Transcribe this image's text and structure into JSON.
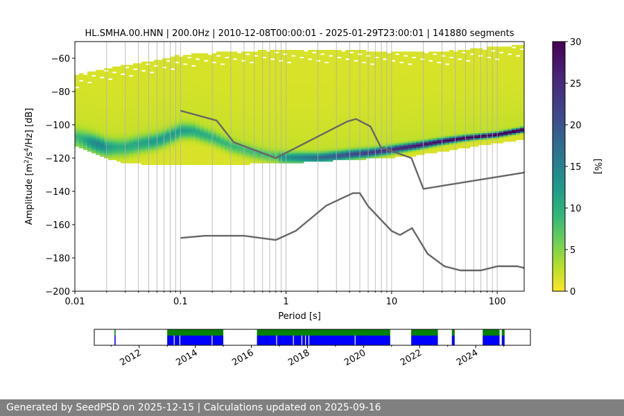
{
  "chart_data": {
    "type": "heatmap",
    "title": "HL.SMHA.00.HNN | 200.0Hz | 2010-12-08T00:00:01 - 2025-01-29T23:00:01 | 141880 segments",
    "xlabel": "Period [s]",
    "ylabel_parts": [
      "Amplitude [m",
      "2",
      "/s",
      "4",
      "/Hz] [dB]"
    ],
    "x_scale": "log",
    "xlim": [
      0.01,
      180
    ],
    "ylim": [
      -200,
      -50
    ],
    "x_ticks": [
      0.01,
      0.1,
      1,
      10,
      100
    ],
    "x_tick_labels": [
      "0.01",
      "0.1",
      "1",
      "10",
      "100"
    ],
    "y_ticks": [
      -200,
      -180,
      -160,
      -140,
      -120,
      -100,
      -80,
      -60
    ],
    "y_tick_labels": [
      "−200",
      "−180",
      "−160",
      "−140",
      "−120",
      "−100",
      "−80",
      "−60"
    ],
    "grid": "vertical log grid",
    "colorbar": {
      "label": "[%]",
      "range": [
        0,
        30
      ],
      "ticks": [
        0,
        5,
        10,
        15,
        20,
        25,
        30
      ],
      "tick_labels": [
        "0",
        "5",
        "10",
        "15",
        "20",
        "25",
        "30"
      ],
      "colormap": "viridis_r"
    },
    "ppsd_mode_db": [
      [
        0.01,
        -108
      ],
      [
        0.013,
        -110
      ],
      [
        0.02,
        -114
      ],
      [
        0.03,
        -114
      ],
      [
        0.04,
        -112
      ],
      [
        0.06,
        -110
      ],
      [
        0.08,
        -107
      ],
      [
        0.1,
        -104
      ],
      [
        0.13,
        -104
      ],
      [
        0.2,
        -108
      ],
      [
        0.3,
        -113
      ],
      [
        0.5,
        -117
      ],
      [
        0.7,
        -119
      ],
      [
        1,
        -120
      ],
      [
        2,
        -120
      ],
      [
        3,
        -119
      ],
      [
        4,
        -118
      ],
      [
        6,
        -117
      ],
      [
        8,
        -116
      ],
      [
        10,
        -115
      ],
      [
        20,
        -112
      ],
      [
        30,
        -110
      ],
      [
        50,
        -108
      ],
      [
        100,
        -106
      ],
      [
        180,
        -103
      ]
    ],
    "ppsd_band_lower_db": [
      [
        0.01,
        -113
      ],
      [
        0.02,
        -120
      ],
      [
        0.03,
        -123
      ],
      [
        0.06,
        -124
      ],
      [
        0.1,
        -124
      ],
      [
        0.3,
        -124
      ],
      [
        0.7,
        -123
      ],
      [
        1,
        -123
      ],
      [
        2,
        -122
      ],
      [
        4,
        -121
      ],
      [
        8,
        -120
      ],
      [
        15,
        -119
      ],
      [
        30,
        -116
      ],
      [
        60,
        -113
      ],
      [
        100,
        -111
      ],
      [
        180,
        -109
      ]
    ],
    "ppsd_band_upper_db": [
      [
        0.01,
        -70
      ],
      [
        0.02,
        -66
      ],
      [
        0.05,
        -62
      ],
      [
        0.1,
        -58
      ],
      [
        0.3,
        -56
      ],
      [
        1,
        -55
      ],
      [
        3,
        -55
      ],
      [
        10,
        -56
      ],
      [
        30,
        -56
      ],
      [
        100,
        -53
      ],
      [
        180,
        -52
      ]
    ],
    "nhnm": {
      "name": "NHNM",
      "points": [
        [
          0.1,
          -91.5
        ],
        [
          0.22,
          -97.4
        ],
        [
          0.32,
          -110.5
        ],
        [
          0.8,
          -120
        ],
        [
          3.8,
          -98
        ],
        [
          4.6,
          -96.5
        ],
        [
          6.3,
          -101
        ],
        [
          7.9,
          -113.5
        ],
        [
          15.4,
          -120
        ],
        [
          20,
          -138.5
        ],
        [
          180,
          -128.7
        ]
      ]
    },
    "nlnm": {
      "name": "NLNM",
      "points": [
        [
          0.1,
          -168
        ],
        [
          0.17,
          -166.7
        ],
        [
          0.4,
          -166.7
        ],
        [
          0.8,
          -169.2
        ],
        [
          1.24,
          -163.7
        ],
        [
          2.4,
          -148.6
        ],
        [
          4.3,
          -141.1
        ],
        [
          5,
          -141.1
        ],
        [
          6,
          -149
        ],
        [
          10,
          -163.8
        ],
        [
          12,
          -166.2
        ],
        [
          15.6,
          -162.1
        ],
        [
          21.9,
          -177.5
        ],
        [
          31.6,
          -185
        ],
        [
          45,
          -187.5
        ],
        [
          70,
          -187.5
        ],
        [
          101,
          -185
        ],
        [
          154,
          -185
        ],
        [
          180,
          -186
        ]
      ]
    },
    "timeline": {
      "x_tick_labels": [
        "2012",
        "2014",
        "2016",
        "2018",
        "2020",
        "2022",
        "2024"
      ],
      "x_ticks_year": [
        2012,
        2014,
        2016,
        2018,
        2020,
        2022,
        2024
      ],
      "range_year": [
        2010.4,
        2025.95
      ],
      "data_segments": [
        [
          2011.12,
          2011.16
        ],
        [
          2013.0,
          2015.0
        ],
        [
          2016.2,
          2020.95
        ],
        [
          2021.7,
          2022.65
        ],
        [
          2023.15,
          2023.25
        ],
        [
          2024.25,
          2024.85
        ],
        [
          2024.93,
          2025.03
        ]
      ],
      "gaps": [
        2013.25,
        2013.45,
        2014.6,
        2016.9,
        2017.5,
        2017.8,
        2017.93,
        2018.05,
        2019.7
      ]
    }
  },
  "footer": {
    "text": "Generated by SeedPSD on 2025-12-15 | Calculations updated on 2025-09-16"
  }
}
